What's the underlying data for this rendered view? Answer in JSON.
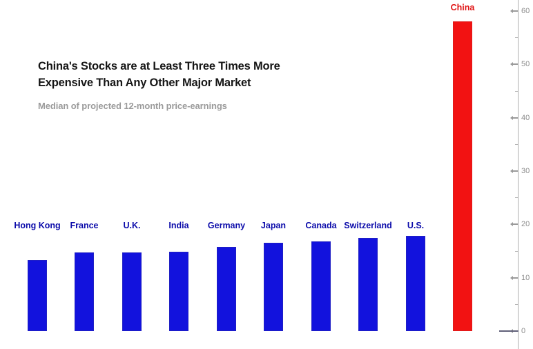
{
  "header": {
    "title_full": "China's Stocks are at Least Three Times More Expensive Than Any Other Major Market",
    "title_lines": [
      "China's Stocks are at Least Three Times More",
      "Expensive Than Any Other Major Market"
    ],
    "subtitle": "Median of projected 12-month price-earnings"
  },
  "chart_data": {
    "type": "bar",
    "title": "China's Stocks are at Least Three Times More Expensive Than Any Other Major Market",
    "subtitle": "Median of projected 12-month price-earnings",
    "categories": [
      "Hong Kong",
      "France",
      "U.K.",
      "India",
      "Germany",
      "Japan",
      "Canada",
      "Switzerland",
      "U.S.",
      "China"
    ],
    "values": [
      13.3,
      14.7,
      14.8,
      14.9,
      15.8,
      16.5,
      16.8,
      17.4,
      17.8,
      58
    ],
    "highlight_category": "China",
    "xlabel": "",
    "ylabel": "",
    "y_axis": {
      "side": "right",
      "min": 0,
      "max": 60,
      "major_step": 10,
      "minor_step": 5,
      "tick_labels": [
        "0",
        "10",
        "20",
        "30",
        "40",
        "50",
        "60"
      ]
    },
    "grid": false,
    "legend": "none",
    "colors": {
      "bar": "#1212dd",
      "highlight_bar": "#f21212",
      "category_label": "#0b0baa",
      "highlight_category_label": "#e01414",
      "title": "#161616",
      "subtitle": "#9b9b9b",
      "axis": "#aeaeae",
      "tick_label": "#8c8c8c",
      "zero_line": "#5f5f78"
    }
  }
}
